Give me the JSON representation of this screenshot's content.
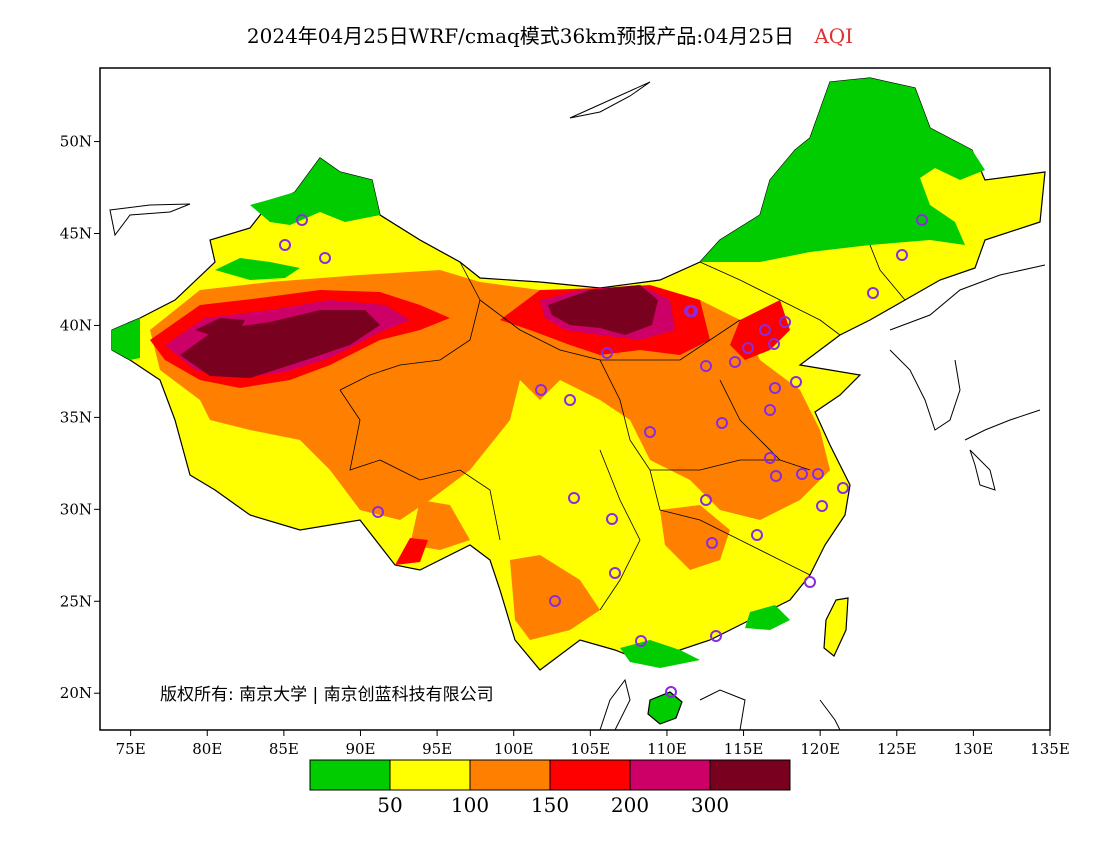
{
  "title": {
    "main": "2024年04月25日WRF/cmaq模式36km预报产品:04月25日",
    "pollutant": "AQI",
    "pollutant_color": "#e03030"
  },
  "map": {
    "lon_range": [
      73,
      135
    ],
    "lat_range": [
      18,
      54
    ],
    "x_ticks": [
      "75E",
      "80E",
      "85E",
      "90E",
      "95E",
      "100E",
      "105E",
      "110E",
      "115E",
      "120E",
      "125E",
      "130E",
      "135E"
    ],
    "y_ticks": [
      "20N",
      "25N",
      "30N",
      "35N",
      "40N",
      "45N",
      "50N"
    ],
    "station_marker_color": "#8a2be2"
  },
  "legend": {
    "colors": [
      "#00cc00",
      "#ffff00",
      "#ff8000",
      "#ff0000",
      "#cc0066",
      "#7a0020"
    ],
    "labels": [
      "50",
      "100",
      "150",
      "200",
      "300"
    ]
  },
  "copyright": "版权所有: 南京大学 | 南京创蓝科技有限公司"
}
